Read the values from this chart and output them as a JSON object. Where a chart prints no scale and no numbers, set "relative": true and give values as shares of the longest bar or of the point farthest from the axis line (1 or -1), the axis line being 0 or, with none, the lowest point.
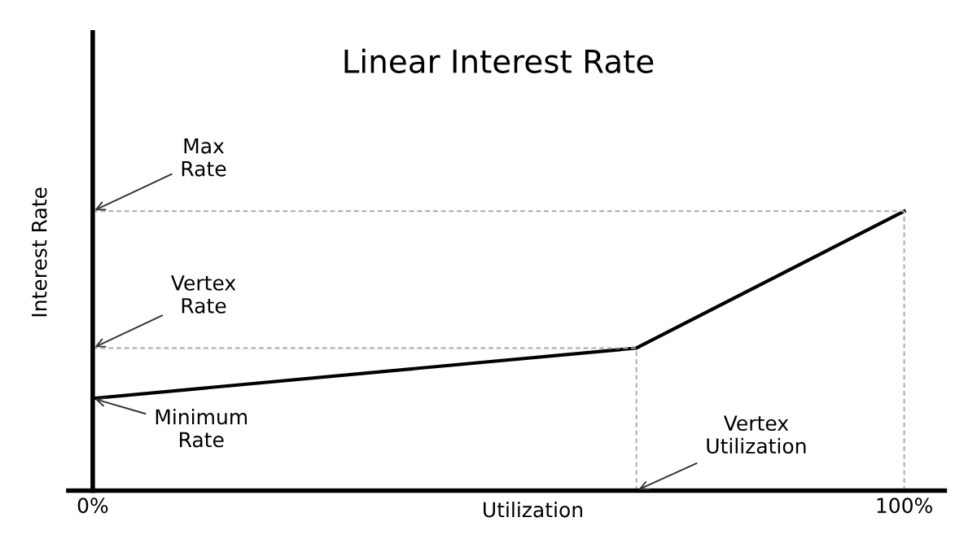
{
  "chart_data": {
    "type": "line",
    "title": "Linear Interest Rate",
    "xlabel": "Utilization",
    "ylabel": "Interest Rate",
    "relative": true,
    "x": [
      0,
      67,
      100
    ],
    "series": [
      {
        "color": "#000000",
        "values": [
          0.33,
          0.51,
          1.0
        ]
      }
    ],
    "xlim": [
      -3,
      105
    ],
    "xticks": [
      {
        "value": 0,
        "label": "0%"
      },
      {
        "value": 100,
        "label": "100%"
      }
    ],
    "ref_lines": [
      {
        "axis": "y",
        "value": 1.0,
        "label": "Max\nRate",
        "color": "#aaaaaa",
        "line_style": "dashed"
      },
      {
        "axis": "y",
        "value": 0.51,
        "label": "Vertex\nRate",
        "color": "#aaaaaa",
        "line_style": "dashed"
      },
      {
        "axis": "x",
        "value": 67,
        "label": "Vertex\nUtilization",
        "color": "#aaaaaa",
        "line_style": "dashed"
      },
      {
        "axis": "x",
        "value": 100,
        "color": "#aaaaaa",
        "line_style": "dashed"
      }
    ],
    "annotations": [
      {
        "text": "Minimum\nRate",
        "x": 0,
        "y": 0.33
      }
    ],
    "line_style": "solid"
  }
}
